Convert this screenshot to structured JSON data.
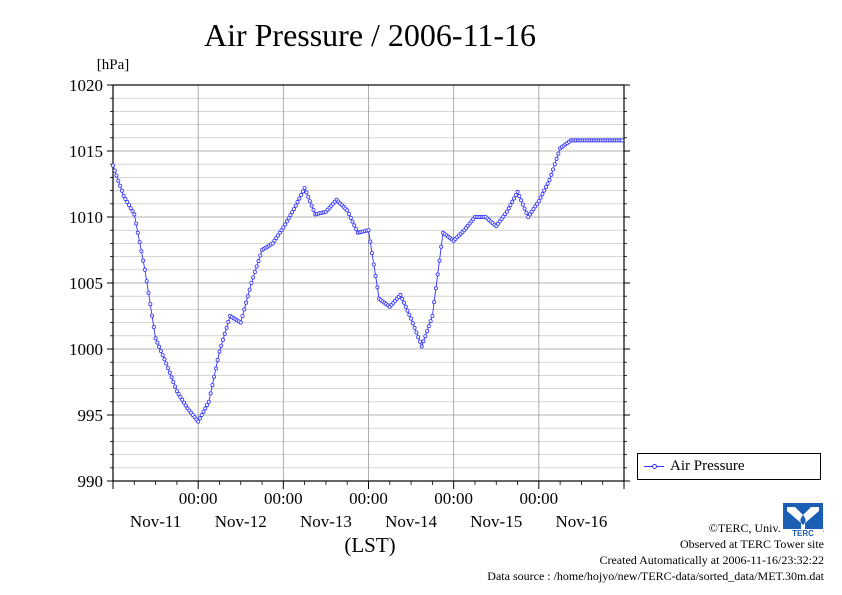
{
  "title": "Air Pressure / 2006-11-16",
  "unit_label": "[hPa]",
  "xlabel": "(LST)",
  "credits": {
    "copyright": "©TERC, Univ. Tsukuba",
    "observed": "Observed at TERC Tower site",
    "created": "Created Automatically at 2006-11-16/23:32:22",
    "source": "Data source : /home/hojyo/new/TERC-data/sorted_data/MET.30m.dat"
  },
  "logo": {
    "text": "TERC",
    "color": "#1a5fb4"
  },
  "colors": {
    "series": "#3333ff",
    "grid": "#999999"
  },
  "chart_data": {
    "type": "line",
    "title": "Air Pressure / 2006-11-16",
    "ylabel": "[hPa]",
    "xlabel": "(LST)",
    "ylim": [
      990,
      1020
    ],
    "yticks": [
      "990",
      "995",
      "1000",
      "1005",
      "1010",
      "1015",
      "1020"
    ],
    "x_time_labels": [
      "00:00",
      "00:00",
      "00:00",
      "00:00",
      "00:00"
    ],
    "x_day_labels": [
      "Nov-11",
      "Nov-12",
      "Nov-13",
      "Nov-14",
      "Nov-15",
      "Nov-16"
    ],
    "xlim_days": [
      "2006-11-11 00:00",
      "2006-11-17 00:00"
    ],
    "grid": true,
    "legend": {
      "position": "right",
      "entries": [
        "Air Pressure"
      ]
    },
    "series": [
      {
        "name": "Air Pressure",
        "x": [
          "2006-11-11 00:00",
          "2006-11-11 03:00",
          "2006-11-11 06:00",
          "2006-11-11 09:00",
          "2006-11-11 12:00",
          "2006-11-11 15:00",
          "2006-11-11 18:00",
          "2006-11-11 21:00",
          "2006-11-12 00:00",
          "2006-11-12 03:00",
          "2006-11-12 06:00",
          "2006-11-12 09:00",
          "2006-11-12 12:00",
          "2006-11-12 15:00",
          "2006-11-12 18:00",
          "2006-11-12 21:00",
          "2006-11-13 00:00",
          "2006-11-13 03:00",
          "2006-11-13 06:00",
          "2006-11-13 09:00",
          "2006-11-13 12:00",
          "2006-11-13 15:00",
          "2006-11-13 18:00",
          "2006-11-13 21:00",
          "2006-11-14 00:00",
          "2006-11-14 03:00",
          "2006-11-14 06:00",
          "2006-11-14 09:00",
          "2006-11-14 12:00",
          "2006-11-14 15:00",
          "2006-11-14 18:00",
          "2006-11-14 21:00",
          "2006-11-15 00:00",
          "2006-11-15 03:00",
          "2006-11-15 06:00",
          "2006-11-15 09:00",
          "2006-11-15 12:00",
          "2006-11-15 15:00",
          "2006-11-15 18:00",
          "2006-11-15 21:00",
          "2006-11-16 00:00",
          "2006-11-16 03:00",
          "2006-11-16 06:00",
          "2006-11-16 09:00",
          "2006-11-16 12:00",
          "2006-11-16 15:00",
          "2006-11-16 18:00",
          "2006-11-16 21:00",
          "2006-11-16 23:30"
        ],
        "values": [
          1013.9,
          1011.6,
          1010.2,
          1006.0,
          1000.8,
          998.9,
          996.8,
          995.5,
          994.5,
          996.0,
          999.8,
          1002.5,
          1002.0,
          1005.0,
          1007.5,
          1008.0,
          1009.2,
          1010.6,
          1012.2,
          1010.2,
          1010.4,
          1011.3,
          1010.5,
          1008.8,
          1009.0,
          1003.8,
          1003.2,
          1004.1,
          1002.3,
          1000.2,
          1002.5,
          1008.8,
          1008.2,
          1009.0,
          1010.0,
          1010.0,
          1009.3,
          1010.4,
          1011.9,
          1010.0,
          1011.2,
          1012.8,
          1015.2,
          1015.8,
          1015.8,
          1015.8,
          1015.8,
          1015.8,
          1015.8
        ]
      }
    ]
  }
}
